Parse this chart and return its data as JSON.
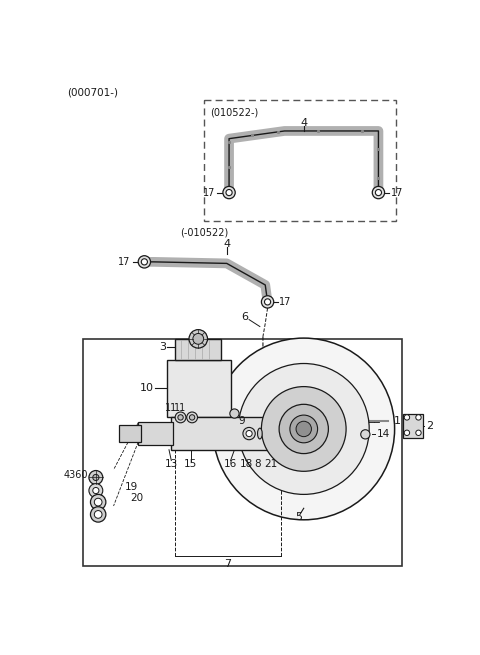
{
  "bg_color": "#ffffff",
  "lc": "#1a1a1a",
  "fig_width": 4.8,
  "fig_height": 6.55,
  "dpi": 100,
  "top_label": "(000701-)",
  "box_label": "(010522-)",
  "lower_label": "(-010522)"
}
